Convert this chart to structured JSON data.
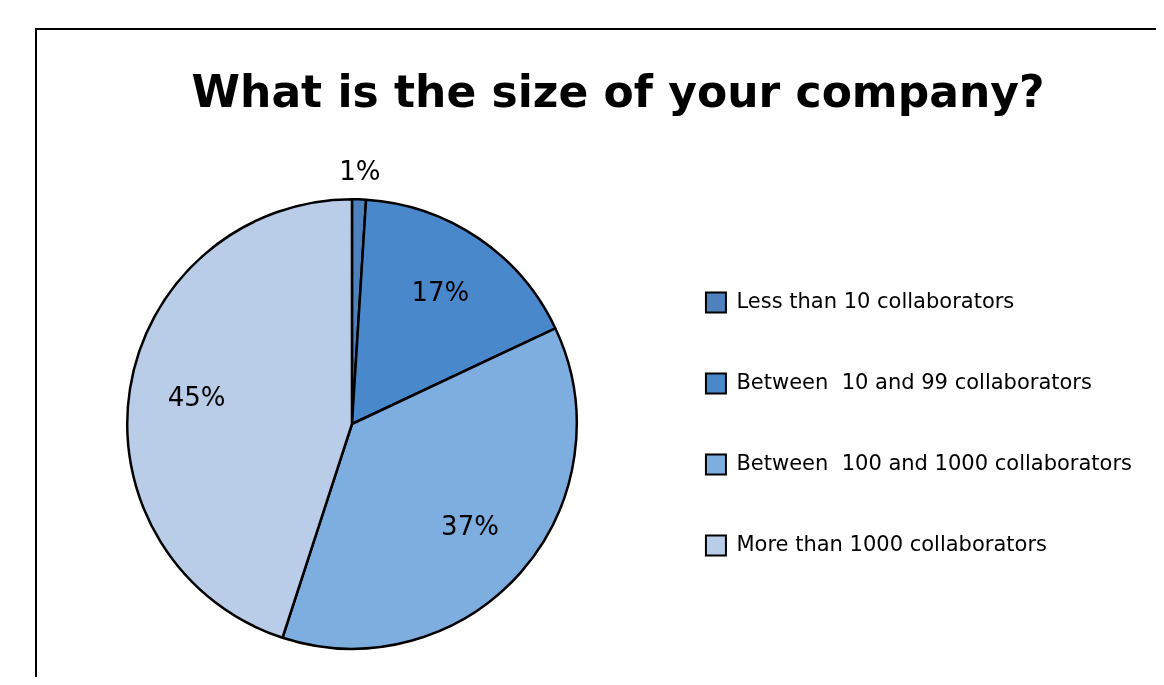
{
  "chart_data": {
    "type": "pie",
    "title": "What is the size of your company?",
    "categories": [
      "Less than 10 collaborators",
      "Between  10 and 99 collaborators",
      "Between  100 and 1000 collaborators",
      "More than 1000 collaborators"
    ],
    "values": [
      1,
      17,
      37,
      45
    ],
    "colors": [
      "#4f81bd",
      "#4a88cc",
      "#7eaee0",
      "#b9cde8"
    ],
    "value_labels": [
      "1%",
      "17%",
      "37%",
      "45%"
    ],
    "legend": "right"
  }
}
